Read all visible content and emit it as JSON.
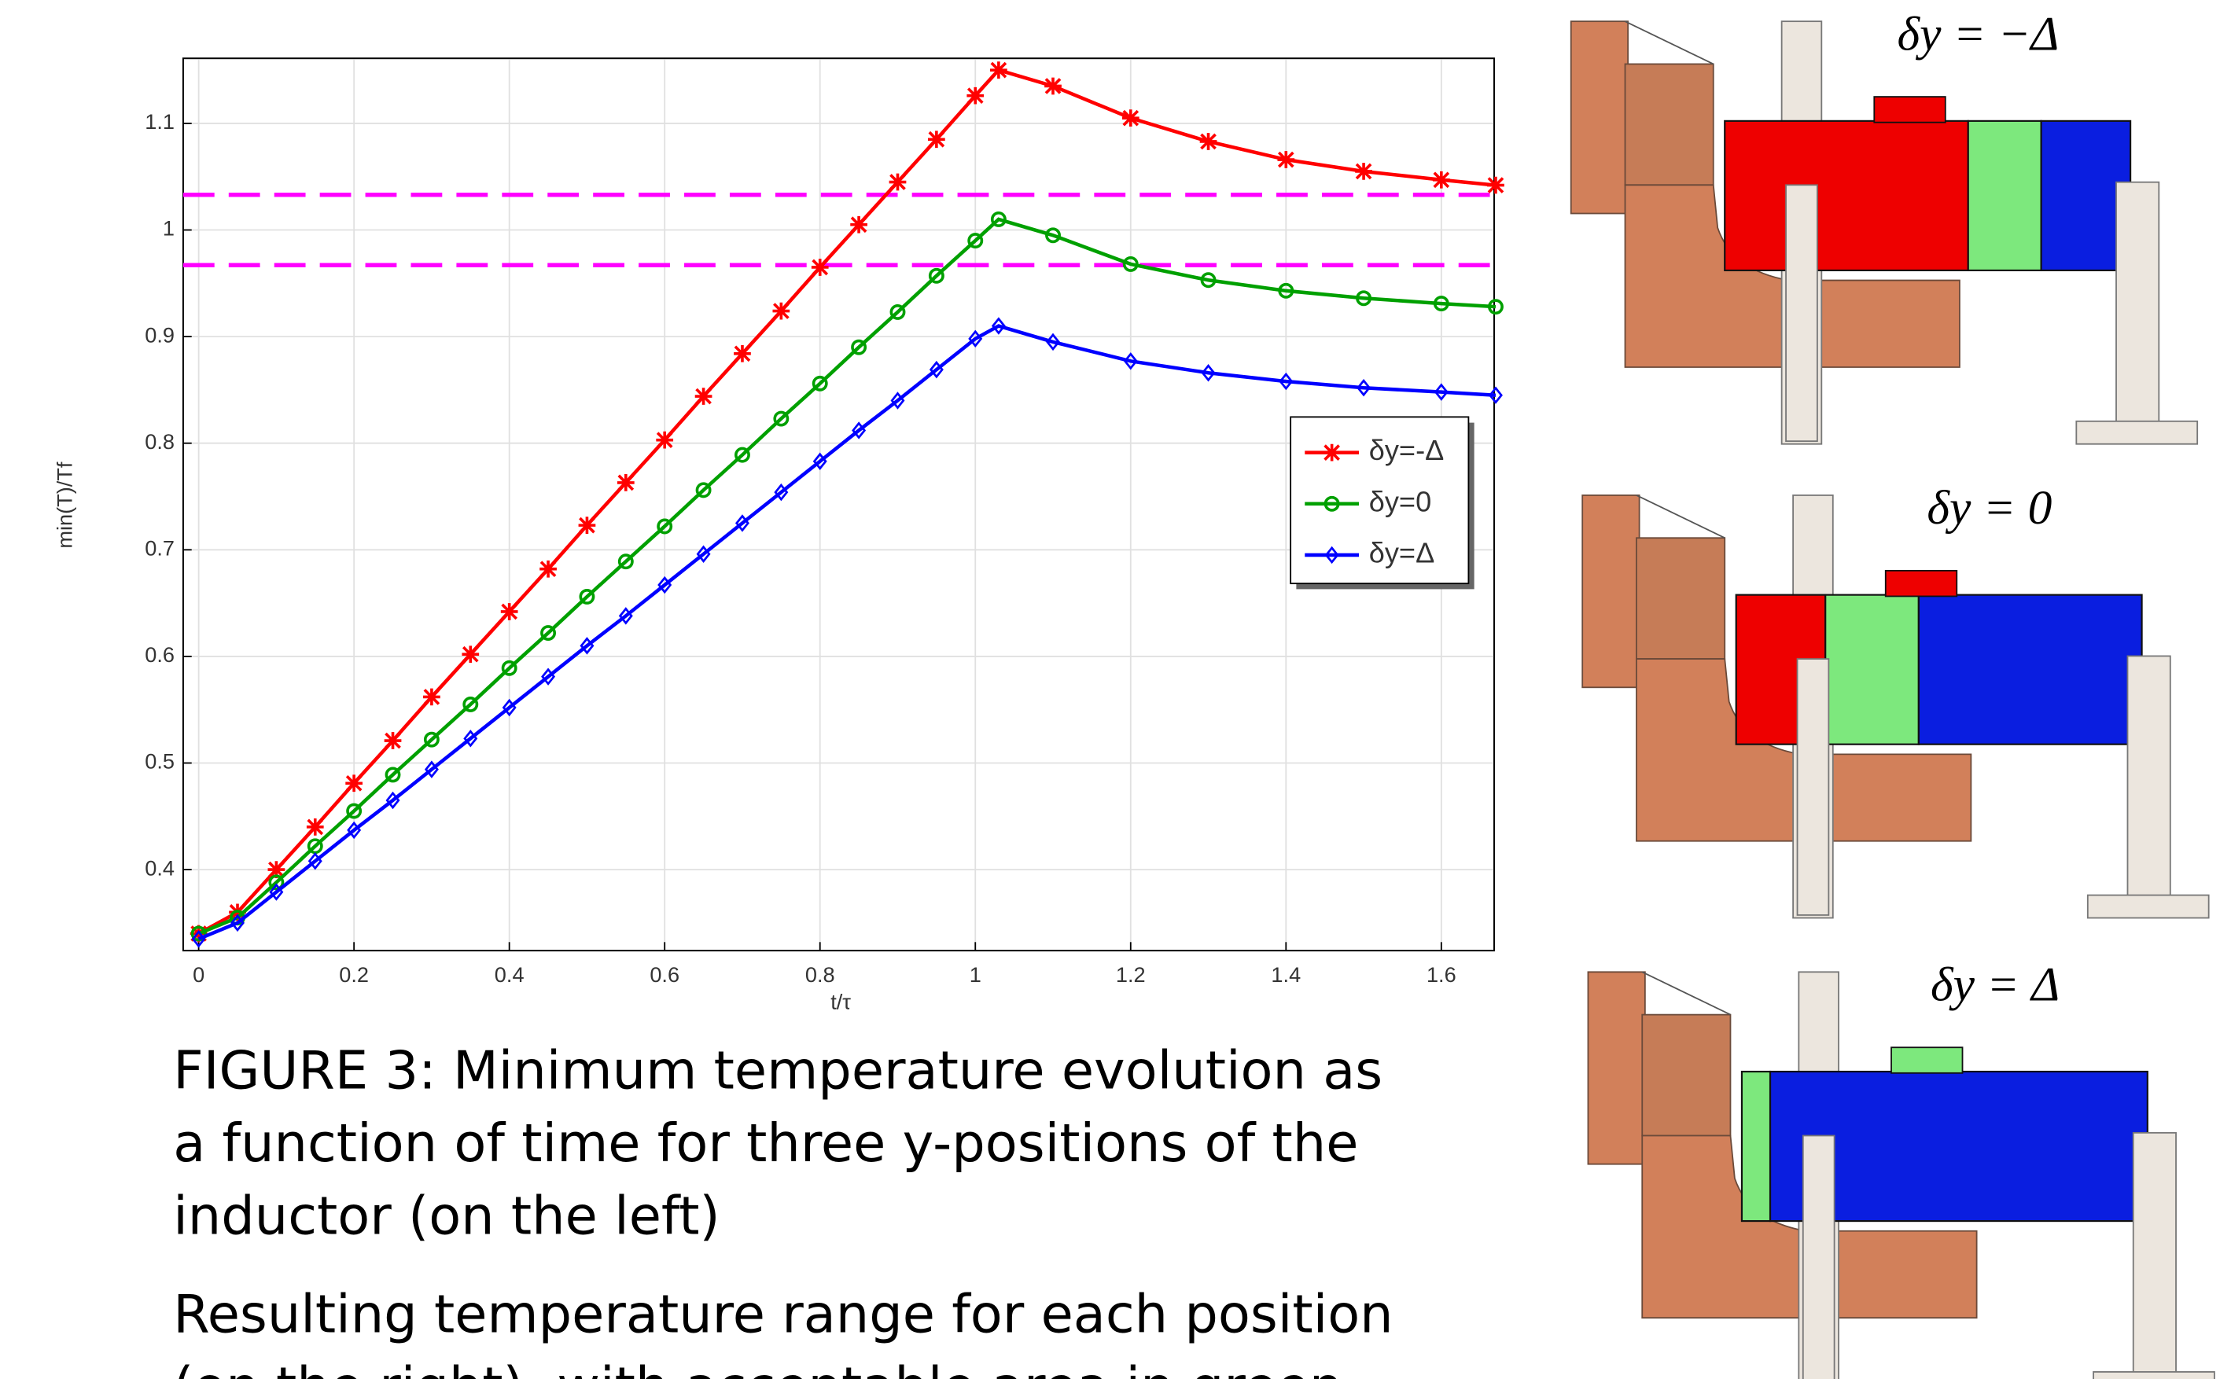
{
  "chart_data": {
    "type": "line",
    "x_label": "t/τ",
    "y_label": "min(T)/Tf",
    "x": [
      0,
      0.05,
      0.1,
      0.15,
      0.2,
      0.25,
      0.3,
      0.35,
      0.4,
      0.45,
      0.5,
      0.55,
      0.6,
      0.65,
      0.7,
      0.75,
      0.8,
      0.85,
      0.9,
      0.95,
      1.0,
      1.03,
      1.1,
      1.2,
      1.3,
      1.4,
      1.5,
      1.6,
      1.67
    ],
    "series": [
      {
        "name": "δy=-Δ",
        "color": "#ff0000",
        "marker": "asterisk",
        "values": [
          0.34,
          0.36,
          0.4,
          0.44,
          0.481,
          0.521,
          0.562,
          0.602,
          0.642,
          0.682,
          0.723,
          0.763,
          0.803,
          0.844,
          0.884,
          0.924,
          0.965,
          1.005,
          1.045,
          1.085,
          1.126,
          1.15,
          1.135,
          1.105,
          1.083,
          1.066,
          1.055,
          1.047,
          1.042
        ]
      },
      {
        "name": "δy=0",
        "color": "#00a000",
        "marker": "circle",
        "values": [
          0.34,
          0.355,
          0.388,
          0.422,
          0.455,
          0.489,
          0.522,
          0.555,
          0.589,
          0.622,
          0.656,
          0.689,
          0.722,
          0.756,
          0.789,
          0.823,
          0.856,
          0.89,
          0.923,
          0.957,
          0.99,
          1.01,
          0.995,
          0.968,
          0.953,
          0.943,
          0.936,
          0.931,
          0.928
        ]
      },
      {
        "name": "δy=Δ",
        "color": "#0000ff",
        "marker": "diamond",
        "values": [
          0.335,
          0.35,
          0.379,
          0.408,
          0.437,
          0.465,
          0.494,
          0.523,
          0.552,
          0.581,
          0.61,
          0.638,
          0.667,
          0.696,
          0.725,
          0.754,
          0.783,
          0.812,
          0.84,
          0.869,
          0.898,
          0.91,
          0.895,
          0.877,
          0.866,
          0.858,
          0.852,
          0.848,
          0.845
        ]
      }
    ],
    "hlines": [
      {
        "value": 1.033,
        "color": "#ff00ff"
      },
      {
        "value": 0.967,
        "color": "#ff00ff"
      }
    ],
    "xlim": [
      -0.02,
      1.668
    ],
    "ylim": [
      0.324,
      1.161
    ],
    "xticks": [
      0,
      0.2,
      0.4,
      0.6,
      0.8,
      1,
      1.2,
      1.4,
      1.6
    ],
    "yticks": [
      0.4,
      0.5,
      0.6,
      0.7,
      0.8,
      0.9,
      1,
      1.1
    ],
    "grid": true,
    "legend": "right"
  },
  "caption": {
    "paragraphs": [
      [
        "FIGURE 3: Minimum temperature evolution as",
        "a function of time for three y-positions of the",
        "inductor (on the left)"
      ],
      [
        "Resulting temperature range for each position",
        "(on the right), with acceptable area in green"
      ]
    ]
  },
  "panels": [
    {
      "title": "δy = −Δ"
    },
    {
      "title": "δy = 0"
    },
    {
      "title": "δy = Δ"
    }
  ]
}
